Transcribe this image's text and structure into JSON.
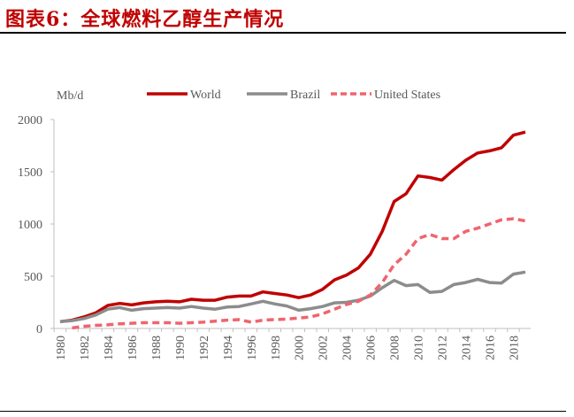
{
  "title": "图表6：全球燃料乙醇生产情况",
  "chart_data": {
    "type": "line",
    "title": "",
    "ylabel": "Mb/d",
    "xlabel": "",
    "ylim": [
      0,
      2000
    ],
    "yticks": [
      0,
      500,
      1000,
      1500,
      2000
    ],
    "x": [
      1980,
      1981,
      1982,
      1983,
      1984,
      1985,
      1986,
      1987,
      1988,
      1989,
      1990,
      1991,
      1992,
      1993,
      1994,
      1995,
      1996,
      1997,
      1998,
      1999,
      2000,
      2001,
      2002,
      2003,
      2004,
      2005,
      2006,
      2007,
      2008,
      2009,
      2010,
      2011,
      2012,
      2013,
      2014,
      2015,
      2016,
      2017,
      2018,
      2019
    ],
    "xtick_labels": [
      "1980",
      "1982",
      "1984",
      "1986",
      "1988",
      "1990",
      "1992",
      "1994",
      "1996",
      "1998",
      "2000",
      "2002",
      "2004",
      "2006",
      "2008",
      "2010",
      "2012",
      "2014",
      "2016",
      "2018"
    ],
    "legend_position": "top",
    "grid": false,
    "series": [
      {
        "name": "World",
        "color": "#c00000",
        "style": "solid",
        "values": [
          65,
          80,
          110,
          150,
          220,
          240,
          225,
          245,
          255,
          260,
          255,
          280,
          270,
          270,
          300,
          310,
          310,
          350,
          335,
          320,
          295,
          320,
          375,
          465,
          510,
          580,
          710,
          930,
          1215,
          1290,
          1460,
          1445,
          1420,
          1520,
          1610,
          1680,
          1700,
          1730,
          1850,
          1880
        ]
      },
      {
        "name": "Brazil",
        "color": "#8c8c8c",
        "style": "solid",
        "values": [
          65,
          75,
          95,
          130,
          185,
          200,
          175,
          190,
          195,
          200,
          195,
          210,
          195,
          185,
          205,
          210,
          235,
          260,
          235,
          215,
          175,
          190,
          210,
          245,
          250,
          270,
          310,
          390,
          460,
          410,
          420,
          345,
          355,
          420,
          440,
          470,
          440,
          435,
          520,
          540
        ]
      },
      {
        "name": "United States",
        "color": "#f0646e",
        "style": "dashed",
        "values": [
          null,
          5,
          20,
          30,
          35,
          45,
          50,
          55,
          55,
          55,
          50,
          55,
          60,
          70,
          80,
          85,
          60,
          80,
          85,
          90,
          100,
          110,
          140,
          185,
          230,
          260,
          320,
          440,
          610,
          710,
          860,
          900,
          860,
          860,
          930,
          960,
          1000,
          1040,
          1050,
          1030
        ]
      }
    ]
  }
}
